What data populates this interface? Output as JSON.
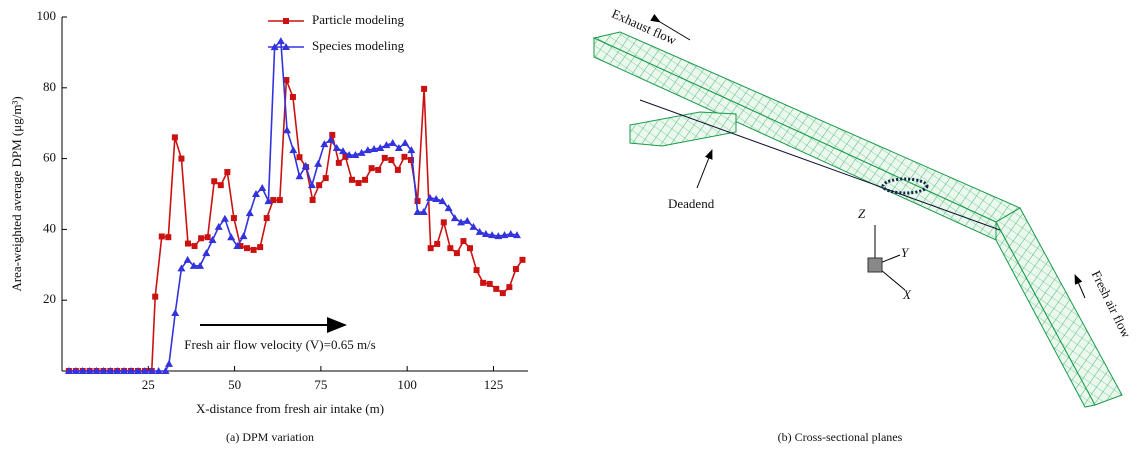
{
  "chart_data": {
    "type": "line",
    "caption": "(a) DPM variation",
    "x_label": "X-distance from fresh air intake (m)",
    "y_label": "Area-weighted average DPM (μg/m³)",
    "annotation": "Fresh air flow velocity (V)=0.65 m/s",
    "xlim": [
      0,
      135
    ],
    "xticks": [
      25,
      50,
      75,
      100,
      125
    ],
    "ylim": [
      0,
      100
    ],
    "yticks": [
      20,
      40,
      60,
      80,
      100
    ],
    "legend": "top-right",
    "series": [
      {
        "name": "Particle modeling",
        "color": "#cc1111",
        "marker": "square",
        "x": [
          2,
          4,
          6,
          8,
          10,
          12,
          14,
          16,
          18,
          20,
          22,
          24,
          26,
          27,
          28.9,
          30.8,
          32.7,
          34.6,
          36.5,
          38.4,
          40.3,
          42.2,
          44.1,
          46,
          47.9,
          49.8,
          51.7,
          53.6,
          55.5,
          57.4,
          59.3,
          61.2,
          63.1,
          65,
          66.9,
          68.8,
          70.7,
          72.6,
          74.5,
          76.4,
          78.3,
          80.2,
          82.1,
          84,
          85.9,
          87.8,
          89.7,
          91.6,
          93.5,
          95.4,
          97.3,
          99.2,
          101.1,
          103,
          104.9,
          106.8,
          108.7,
          110.6,
          112.5,
          114.4,
          116.3,
          118.2,
          120.1,
          122,
          123.9,
          125.8,
          127.7,
          129.6,
          131.5,
          133.4
        ],
        "values": [
          0,
          0,
          0,
          0,
          0,
          0,
          0,
          0,
          0,
          0,
          0,
          0,
          0,
          21,
          38,
          37.8,
          66,
          60,
          36,
          35.3,
          37.5,
          37.8,
          53.6,
          52.5,
          56.2,
          43.2,
          35.3,
          34.7,
          34.2,
          35,
          43.2,
          48.3,
          48.3,
          82.2,
          77.4,
          60.4,
          57.6,
          48.3,
          52.5,
          54.5,
          66.7,
          58.8,
          60.5,
          54,
          53.1,
          54,
          57.3,
          56.8,
          60.2,
          59.6,
          56.8,
          60.5,
          59.6,
          48,
          79.7,
          34.7,
          35.9,
          42,
          34.7,
          33.3,
          36.7,
          34.7,
          28.5,
          24.9,
          24.6,
          23.2,
          22,
          23.7,
          28.8,
          31.4
        ]
      },
      {
        "name": "Species modeling",
        "color": "#3333dd",
        "marker": "triangle",
        "x": [
          2,
          4,
          6,
          8,
          10,
          12,
          14,
          16,
          18,
          20,
          22,
          24,
          26,
          28,
          30,
          31,
          32.8,
          34.6,
          36.4,
          38.2,
          40,
          41.8,
          43.6,
          45.4,
          47.2,
          49,
          50.8,
          52.6,
          54.4,
          56.2,
          58,
          59.8,
          61.6,
          63.4,
          65.2,
          67,
          68.8,
          70.6,
          72.4,
          74.2,
          76,
          77.8,
          79.6,
          81.4,
          83.2,
          85,
          86.8,
          88.6,
          90.4,
          92.2,
          94,
          95.8,
          97.6,
          99.4,
          101.2,
          103,
          104.8,
          106.6,
          108.4,
          110.2,
          112,
          113.8,
          115.6,
          117.4,
          119.2,
          121,
          122.8,
          124.6,
          126.4,
          128.2,
          130,
          131.8
        ],
        "values": [
          0,
          0,
          0,
          0,
          0,
          0,
          0,
          0,
          0,
          0,
          0,
          0,
          0,
          0,
          0,
          2,
          16.4,
          29,
          31.4,
          29.7,
          29.7,
          33.3,
          37,
          40.7,
          43,
          37.8,
          35.3,
          38.1,
          44.6,
          50,
          51.7,
          48,
          91.5,
          93.2,
          68,
          62.4,
          55,
          57.9,
          52.5,
          58.5,
          64.1,
          65.3,
          63,
          62.1,
          61,
          61,
          61.6,
          62.4,
          62.7,
          63,
          63.8,
          64.4,
          63,
          64.4,
          62.4,
          44.9,
          44.9,
          48.9,
          48.6,
          48,
          46,
          43.2,
          42,
          42.4,
          40.7,
          39.3,
          38.7,
          38.4,
          38.1,
          38.4,
          38.7,
          38.4
        ]
      }
    ]
  },
  "diagram": {
    "caption": "(b) Cross-sectional planes",
    "labels": {
      "exhaust": "Exhaust flow",
      "deadend": "Deadend",
      "fresh": "Fresh air flow"
    },
    "axes": {
      "z": "Z",
      "y": "Y",
      "x": "X"
    }
  }
}
